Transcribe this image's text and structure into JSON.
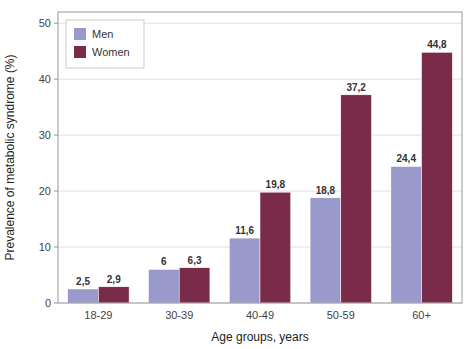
{
  "chart_data": {
    "type": "bar",
    "xlabel": "Age groups, years",
    "ylabel": "Prevalence of metabolic syndrome (%)",
    "categories": [
      "18-29",
      "30-39",
      "40-49",
      "50-59",
      "60+"
    ],
    "series": [
      {
        "name": "Men",
        "color": "#9999cc",
        "values": [
          2.5,
          6.0,
          11.6,
          18.8,
          24.4
        ],
        "value_labels": [
          "2,5",
          "6",
          "11,6",
          "18,8",
          "24,4"
        ]
      },
      {
        "name": "Women",
        "color": "#7b2b4a",
        "values": [
          2.9,
          6.3,
          19.8,
          37.2,
          44.8
        ],
        "value_labels": [
          "2,9",
          "6,3",
          "19,8",
          "37,2",
          "44,8"
        ]
      }
    ],
    "ylim": [
      0,
      52
    ],
    "yticks": [
      0,
      10,
      20,
      30,
      40,
      50
    ],
    "grid": true,
    "legend": "upper left",
    "data_labels": true
  }
}
